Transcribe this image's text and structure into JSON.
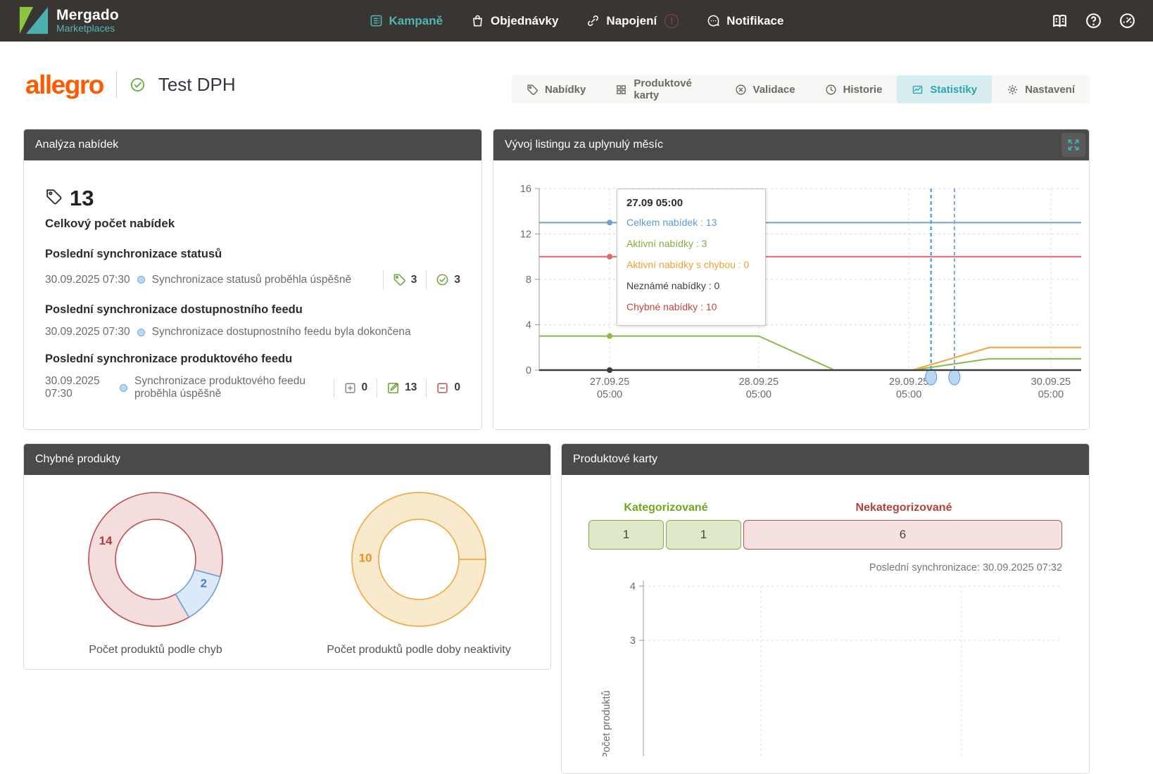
{
  "navbar": {
    "brand": {
      "name": "Mergado",
      "subtitle": "Marketplaces"
    },
    "items": [
      {
        "id": "kampane",
        "label": "Kampaně",
        "icon": "campaigns-icon",
        "active": true,
        "badge": null
      },
      {
        "id": "objednavky",
        "label": "Objednávky",
        "icon": "orders-icon",
        "active": false,
        "badge": null
      },
      {
        "id": "napojeni",
        "label": "Napojení",
        "icon": "connection-icon",
        "active": false,
        "badge": "!"
      },
      {
        "id": "notifikace",
        "label": "Notifikace",
        "icon": "notifications-icon",
        "active": false,
        "badge": null
      }
    ],
    "right_icons": [
      {
        "id": "docs",
        "icon": "docs-icon"
      },
      {
        "id": "help",
        "icon": "help-icon"
      },
      {
        "id": "usage",
        "icon": "gauge-icon"
      }
    ]
  },
  "page_header": {
    "marketplace_logo": "allegro",
    "title": "Test DPH"
  },
  "tabs": [
    {
      "label": "Nabídky",
      "icon": "tag-icon",
      "active": false
    },
    {
      "label": "Produktové karty",
      "icon": "grid-icon",
      "active": false
    },
    {
      "label": "Validace",
      "icon": "x-circle-icon",
      "active": false
    },
    {
      "label": "Historie",
      "icon": "clock-icon",
      "active": false
    },
    {
      "label": "Statistiky",
      "icon": "stats-icon",
      "active": true
    },
    {
      "label": "Nastavení",
      "icon": "gear-icon",
      "active": false
    }
  ],
  "offer_analysis": {
    "title": "Analýza nabídek",
    "total": {
      "value": "13",
      "label": "Celkový počet nabídek"
    },
    "sections": [
      {
        "heading": "Poslední synchronizace statusů",
        "date": "30.09.2025 07:30",
        "message": "Synchronizace statusů proběhla úspěšně",
        "wrap": false,
        "stats": [
          {
            "icon": "tag-icon",
            "value": "3",
            "color": "#74a53c"
          },
          {
            "icon": "check-circle-icon",
            "value": "3",
            "color": "#74a53c"
          }
        ]
      },
      {
        "heading": "Poslední synchronizace dostupnostního feedu",
        "date": "30.09.2025 07:30",
        "message": "Synchronizace dostupnostního feedu byla dokončena",
        "wrap": false,
        "stats": []
      },
      {
        "heading": "Poslední synchronizace produktového feedu",
        "date": "30.09.2025 07:30",
        "message": "Synchronizace produktového feedu proběhla úspěšně",
        "wrap": true,
        "stats": [
          {
            "icon": "plus-square-icon",
            "value": "0",
            "color": "#8d8d8d"
          },
          {
            "icon": "edit-square-icon",
            "value": "13",
            "color": "#74a53c"
          },
          {
            "icon": "minus-square-icon",
            "value": "0",
            "color": "#c05e5e"
          }
        ]
      }
    ]
  },
  "listing_card": {
    "title": "Vývoj listingu za uplynulý měsíc"
  },
  "errors_card": {
    "title": "Chybné produkty"
  },
  "product_cards": {
    "title": "Produktové karty",
    "last_sync": "Poslední synchronizace: 30.09.2025 07:32"
  },
  "chart_data": [
    {
      "id": "listing_trend",
      "type": "line",
      "title": "Vývoj listingu za uplynulý měsíc",
      "ylim": [
        0,
        16
      ],
      "yticks": [
        0,
        4,
        8,
        12,
        16
      ],
      "grid": true,
      "xticks": [
        {
          "pos": 0.13,
          "label": "27.09.25",
          "label2": "05:00"
        },
        {
          "pos": 0.405,
          "label": "28.09.25",
          "label2": "05:00"
        },
        {
          "pos": 0.682,
          "label": "29.09.25",
          "label2": "05:00"
        },
        {
          "pos": 0.944,
          "label": "30.09.25",
          "label2": "05:00"
        }
      ],
      "series": [
        {
          "name": "Celkem nabídek",
          "color": "#6f9fd8",
          "points": [
            [
              0,
              13
            ],
            [
              1,
              13
            ]
          ],
          "marker_value": 13
        },
        {
          "name": "Chybné nabídky",
          "color": "#dd6b66",
          "points": [
            [
              0,
              10
            ],
            [
              1,
              10
            ]
          ],
          "marker_value": 10
        },
        {
          "name": "Aktivní nabídky",
          "color": "#8ab94a",
          "points": [
            [
              0,
              3
            ],
            [
              0.405,
              3
            ],
            [
              0.545,
              0
            ],
            [
              0.688,
              0
            ],
            [
              0.831,
              1
            ],
            [
              1,
              1
            ]
          ],
          "marker_value": 3
        },
        {
          "name": "Aktivní nabídky s chybou",
          "color": "#f2a23c",
          "points": [
            [
              0,
              0
            ],
            [
              0.688,
              0
            ],
            [
              0.831,
              2
            ],
            [
              1,
              2
            ]
          ],
          "marker_value": null
        },
        {
          "name": "Neznámé nabídky",
          "color": "#3b3b3b",
          "points": [
            [
              0,
              0
            ],
            [
              1,
              0
            ]
          ],
          "marker_value": 0
        }
      ],
      "marker_pos": 0.13,
      "flags": [
        0.723,
        0.766
      ],
      "tooltip": {
        "title": "27.09 05:00",
        "rows": [
          {
            "label": "Celkem nabídek",
            "value": "13",
            "color": "#5b9bd5"
          },
          {
            "label": "Aktivní nabídky",
            "value": "3",
            "color": "#7fae3e"
          },
          {
            "label": "Aktivní nabídky s chybou",
            "value": "0",
            "color": "#f0a030"
          },
          {
            "label": "Neznámé nabídky",
            "value": "0",
            "color": "#3f3f3f"
          },
          {
            "label": "Chybné nabídky",
            "value": "10",
            "color": "#c14543"
          }
        ]
      }
    },
    {
      "id": "products_by_errors",
      "type": "pie",
      "title": "Počet produktů podle chyb",
      "start_angle": 150,
      "slices": [
        {
          "label": "14",
          "value": 14,
          "fill": "#f3dddd",
          "stroke": "#c0504e",
          "label_color": "#b13c3c",
          "label_angle": 291
        },
        {
          "label": "2",
          "value": 2,
          "fill": "#dbe9f8",
          "stroke": "#6f9fd8",
          "label_color": "#4a7fc1",
          "label_angle": 116
        }
      ]
    },
    {
      "id": "products_by_inactivity",
      "type": "pie",
      "title": "Počet produktů podle doby neaktivity",
      "start_angle": 90,
      "slices": [
        {
          "label": "10",
          "value": 10,
          "fill": "#f9e9cd",
          "stroke": "#efa73e",
          "label_color": "#e8941a",
          "label_angle": 272
        }
      ]
    },
    {
      "id": "product_cards_bar",
      "type": "bar",
      "groups": [
        {
          "label": "Kategorizované",
          "label_color": "#71a520",
          "fill": "#dde9c8",
          "stroke": "#86ae46",
          "segments": [
            1,
            1
          ]
        },
        {
          "label": "Nekategorizované",
          "label_color": "#b5413f",
          "fill": "#f6e1e1",
          "stroke": "#b25350",
          "segments": [
            6
          ]
        }
      ]
    },
    {
      "id": "product_cards_trend",
      "type": "line",
      "ylabel": "Počet produktů",
      "yticks_visible": [
        4,
        3
      ],
      "note": "chart area cut off at bottom of viewport",
      "series": []
    }
  ]
}
